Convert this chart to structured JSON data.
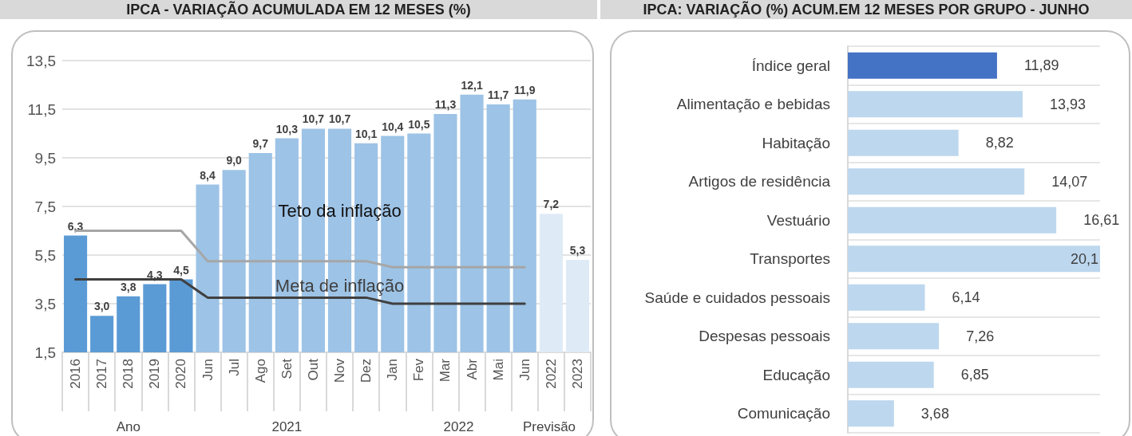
{
  "chart_data": [
    {
      "type": "bar",
      "title": "IPCA - VARIAÇÃO ACUMULADA EM 12 MESES (%)",
      "categories": [
        "2016",
        "2017",
        "2018",
        "2019",
        "2020",
        "Jun",
        "Jul",
        "Ago",
        "Set",
        "Out",
        "Nov",
        "Dez",
        "Jan",
        "Fev",
        "Mar",
        "Abr",
        "Mai",
        "Jun",
        "2022",
        "2023"
      ],
      "series": [
        {
          "type": "bar",
          "values": [
            6.3,
            3.0,
            3.8,
            4.3,
            4.5,
            8.4,
            9.0,
            9.7,
            10.3,
            10.7,
            10.7,
            10.1,
            10.4,
            10.5,
            11.3,
            12.1,
            11.7,
            11.9,
            7.2,
            5.3
          ],
          "colors": [
            "#5b9bd5",
            "#5b9bd5",
            "#5b9bd5",
            "#5b9bd5",
            "#5b9bd5",
            "#9dc3e6",
            "#9dc3e6",
            "#9dc3e6",
            "#9dc3e6",
            "#9dc3e6",
            "#9dc3e6",
            "#9dc3e6",
            "#9dc3e6",
            "#9dc3e6",
            "#9dc3e6",
            "#9dc3e6",
            "#9dc3e6",
            "#9dc3e6",
            "#deebf7",
            "#deebf7"
          ],
          "value_labels": [
            "6,3",
            "3,0",
            "3,8",
            "4,3",
            "4,5",
            "8,4",
            "9,0",
            "9,7",
            "10,3",
            "10,7",
            "10,7",
            "10,1",
            "10,4",
            "10,5",
            "11,3",
            "12,1",
            "11,7",
            "11,9",
            "7,2",
            "5,3"
          ]
        },
        {
          "type": "line",
          "name": "Teto da inflação",
          "color": "#a6a6a6",
          "values": [
            6.5,
            6.5,
            6.5,
            6.5,
            6.5,
            5.25,
            5.25,
            5.25,
            5.25,
            5.25,
            5.25,
            5.25,
            5.0,
            5.0,
            5.0,
            5.0,
            5.0,
            5.0,
            null,
            null
          ]
        },
        {
          "type": "line",
          "name": "Meta de inflação",
          "color": "#404040",
          "values": [
            4.5,
            4.5,
            4.5,
            4.5,
            4.5,
            3.75,
            3.75,
            3.75,
            3.75,
            3.75,
            3.75,
            3.75,
            3.5,
            3.5,
            3.5,
            3.5,
            3.5,
            3.5,
            null,
            null
          ]
        }
      ],
      "ylim": [
        1.5,
        13.5
      ],
      "yticks": [
        {
          "value": 1.5,
          "label": "1,5"
        },
        {
          "value": 3.5,
          "label": "3,5"
        },
        {
          "value": 5.5,
          "label": "5,5"
        },
        {
          "value": 7.5,
          "label": "7,5"
        },
        {
          "value": 9.5,
          "label": "9,5"
        },
        {
          "value": 11.5,
          "label": "11,5"
        },
        {
          "value": 13.5,
          "label": "13,5"
        }
      ],
      "grid": "y",
      "legend": false,
      "marker": "none",
      "line_style": "solid",
      "annotations": [
        "Ano",
        "2021",
        "2022",
        "Previsão"
      ]
    },
    {
      "type": "bar",
      "orientation": "horizontal",
      "title": "IPCA: VARIAÇÃO (%) ACUM.EM 12 MESES POR GRUPO - JUNHO",
      "categories": [
        "Índice geral",
        "Alimentação e bebidas",
        "Habitação",
        "Artigos de residência",
        "Vestuário",
        "Transportes",
        "Saúde e cuidados pessoais",
        "Despesas pessoais",
        "Educação",
        "Comunicação"
      ],
      "values": [
        11.89,
        13.93,
        8.82,
        14.07,
        16.61,
        20.1,
        6.14,
        7.26,
        6.85,
        3.68
      ],
      "colors": [
        "#4472c4",
        "#bdd7ee",
        "#bdd7ee",
        "#bdd7ee",
        "#bdd7ee",
        "#bdd7ee",
        "#bdd7ee",
        "#bdd7ee",
        "#bdd7ee",
        "#bdd7ee"
      ],
      "value_labels": [
        "11,89",
        "13,93",
        "8,82",
        "14,07",
        "16,61",
        "20,1",
        "6,14",
        "7,26",
        "6,85",
        "3,68"
      ],
      "grid": "y",
      "tick_labels": "y",
      "legend": false
    }
  ]
}
